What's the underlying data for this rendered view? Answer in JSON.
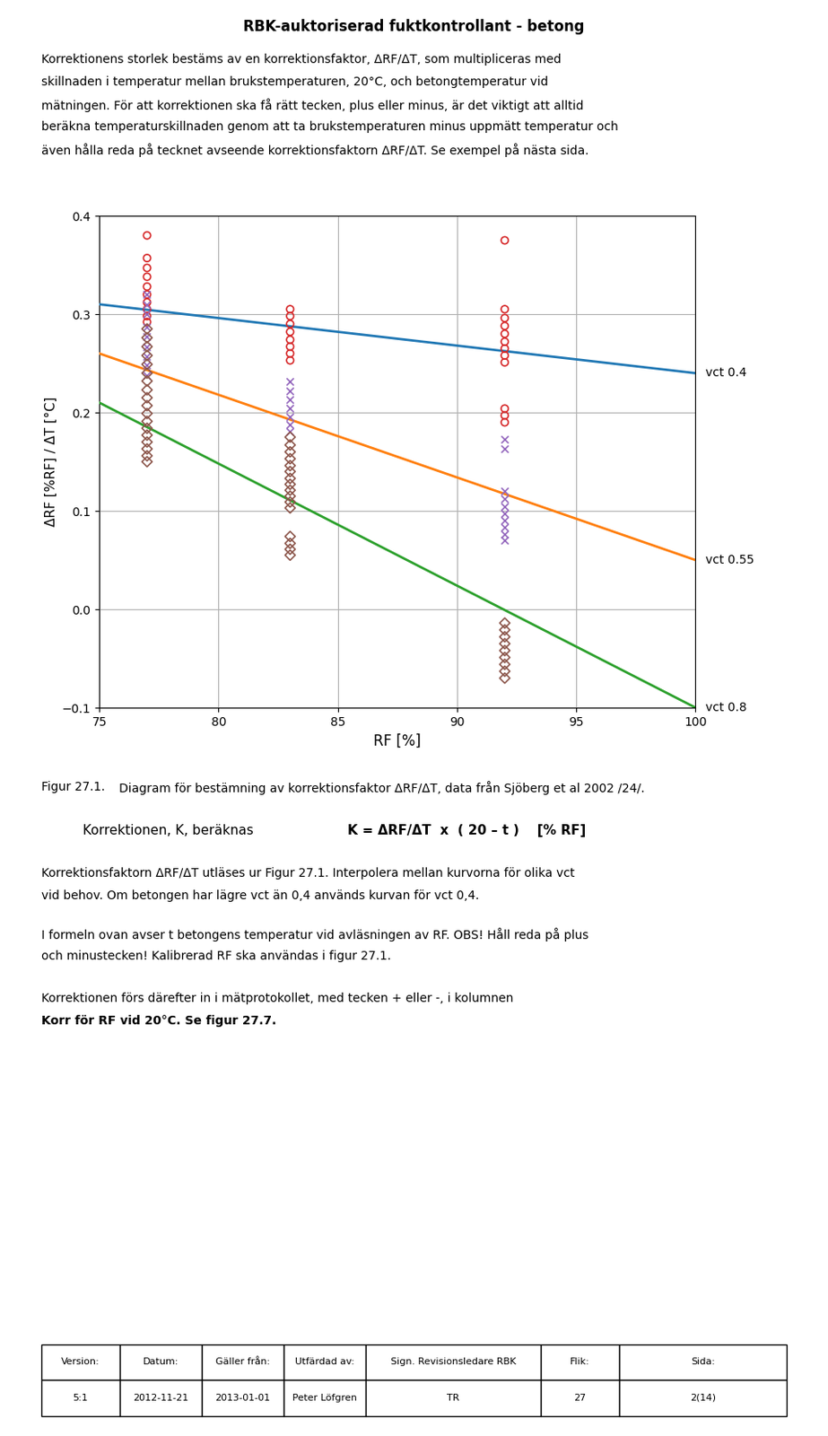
{
  "title": "RBK-auktoriserad fuktkontrollant - betong",
  "annotations": [
    "Korrektionens storlek bestäms av en korrektionsfaktor, ΔRF/ΔT, som multipliceras med",
    "skillnaden i temperatur mellan brukstemperaturen, 20°C, och betongtemperatur vid",
    "mätningen. För att korrektionen ska få rätt tecken, plus eller minus, är det viktigt att alltid",
    "beräkna temperaturskillnaden genom att ta brukstemperaturen minus uppmätt temperatur och",
    "även hålla reda på tecknet avseende korrektionsfaktorn ΔRF/ΔT. Se exempel på nästa sida.",
    "Figur 27.1.",
    "Diagram för bestämning av korrektionsfaktor ΔRF/ΔT, data från Sjöberg et al 2002 /24/.",
    "Korrektionen, K, beräknas",
    "K = ΔRF/ΔT  x  ( 20 – t )    [% RF]",
    "Korrektionsfaktorn ΔRF/ΔT utläses ur Figur 27.1. Interpolera mellan kurvorna för olika vct",
    "vid behov. Om betongen har lägre vct än 0,4 används kurvan för vct 0,4.",
    "I formeln ovan avser t betongens temperatur vid avläsningen av RF. OBS! Håll reda på plus",
    "och minustecken! Kalibrerad RF ska användas i figur 27.1.",
    "Korrektionen förs därefter in i mätprotokollet, med tecken + eller -, i kolumnen",
    "Korr för RF vid 20°C. Se figur 27.7."
  ],
  "table": {
    "headers": [
      "Version:",
      "Datum:",
      "Gäller från:",
      "Utfärdad av:",
      "Sign. Revisionsledare RBK",
      "Flik:",
      "Sida:"
    ],
    "values": [
      "5:1",
      "2012-11-21",
      "2013-01-01",
      "Peter Löfgren",
      "TR",
      "27",
      "2(14)"
    ]
  },
  "chart_data": {
    "type": "scatter",
    "xlabel": "RF [%]",
    "ylabel": "ΔRF [%RF] / ΔT [°C]",
    "xlim": [
      75,
      100
    ],
    "ylim": [
      -0.1,
      0.4
    ],
    "xticks": [
      75,
      80,
      85,
      90,
      95,
      100
    ],
    "yticks": [
      {
        "value": -0.1,
        "label": "−0.1"
      },
      {
        "value": 0,
        "label": "0.0"
      },
      0.1,
      0.2,
      0.3,
      0.4
    ],
    "grid": true,
    "series": [
      {
        "name": "vct 0.4",
        "type": "line",
        "line_style": "solid",
        "x": [
          75,
          100
        ],
        "values": [
          0.31,
          0.24
        ]
      },
      {
        "name": "vct 0.55",
        "type": "line",
        "line_style": "solid",
        "x": [
          75,
          100
        ],
        "values": [
          0.26,
          0.05
        ]
      },
      {
        "name": "vct 0.8",
        "type": "line",
        "line_style": "solid",
        "x": [
          75,
          100
        ],
        "values": [
          0.21,
          -0.1
        ]
      },
      {
        "type": "scatter",
        "marker": "o",
        "x": [
          77,
          77,
          77,
          77,
          77,
          77,
          77,
          77,
          77,
          77,
          83,
          83,
          83,
          83,
          83,
          83,
          83,
          83,
          92,
          92,
          92,
          92,
          92,
          92,
          92,
          92,
          92,
          92,
          92,
          92
        ],
        "values": [
          0.38,
          0.357,
          0.347,
          0.338,
          0.328,
          0.32,
          0.312,
          0.305,
          0.298,
          0.292,
          0.305,
          0.298,
          0.29,
          0.282,
          0.274,
          0.267,
          0.26,
          0.253,
          0.375,
          0.305,
          0.296,
          0.288,
          0.28,
          0.272,
          0.265,
          0.258,
          0.251,
          0.204,
          0.197,
          0.19
        ]
      },
      {
        "type": "scatter",
        "marker": "x",
        "x": [
          77,
          77,
          77,
          77,
          77,
          77,
          77,
          77,
          77,
          83,
          83,
          83,
          83,
          83,
          83,
          83,
          92,
          92,
          92,
          92,
          92,
          92,
          92,
          92,
          92,
          92
        ],
        "values": [
          0.32,
          0.31,
          0.3,
          0.287,
          0.277,
          0.267,
          0.257,
          0.248,
          0.238,
          0.232,
          0.222,
          0.213,
          0.204,
          0.196,
          0.188,
          0.181,
          0.173,
          0.163,
          0.12,
          0.112,
          0.104,
          0.097,
          0.09,
          0.083,
          0.076,
          0.07
        ]
      },
      {
        "type": "scatter",
        "marker": "D",
        "x": [
          77,
          77,
          77,
          77,
          77,
          77,
          77,
          77,
          77,
          77,
          77,
          77,
          77,
          77,
          77,
          77,
          77,
          77,
          83,
          83,
          83,
          83,
          83,
          83,
          83,
          83,
          83,
          83,
          83,
          83,
          83,
          83,
          83,
          83,
          92,
          92,
          92,
          92,
          92,
          92,
          92,
          92,
          92
        ],
        "values": [
          0.285,
          0.276,
          0.267,
          0.258,
          0.249,
          0.24,
          0.232,
          0.223,
          0.215,
          0.207,
          0.199,
          0.191,
          0.184,
          0.177,
          0.17,
          0.163,
          0.156,
          0.15,
          0.175,
          0.167,
          0.16,
          0.153,
          0.146,
          0.14,
          0.133,
          0.127,
          0.121,
          0.115,
          0.109,
          0.103,
          0.074,
          0.067,
          0.061,
          0.055,
          -0.014,
          -0.021,
          -0.028,
          -0.035,
          -0.042,
          -0.049,
          -0.056,
          -0.063,
          -0.07
        ]
      }
    ]
  }
}
